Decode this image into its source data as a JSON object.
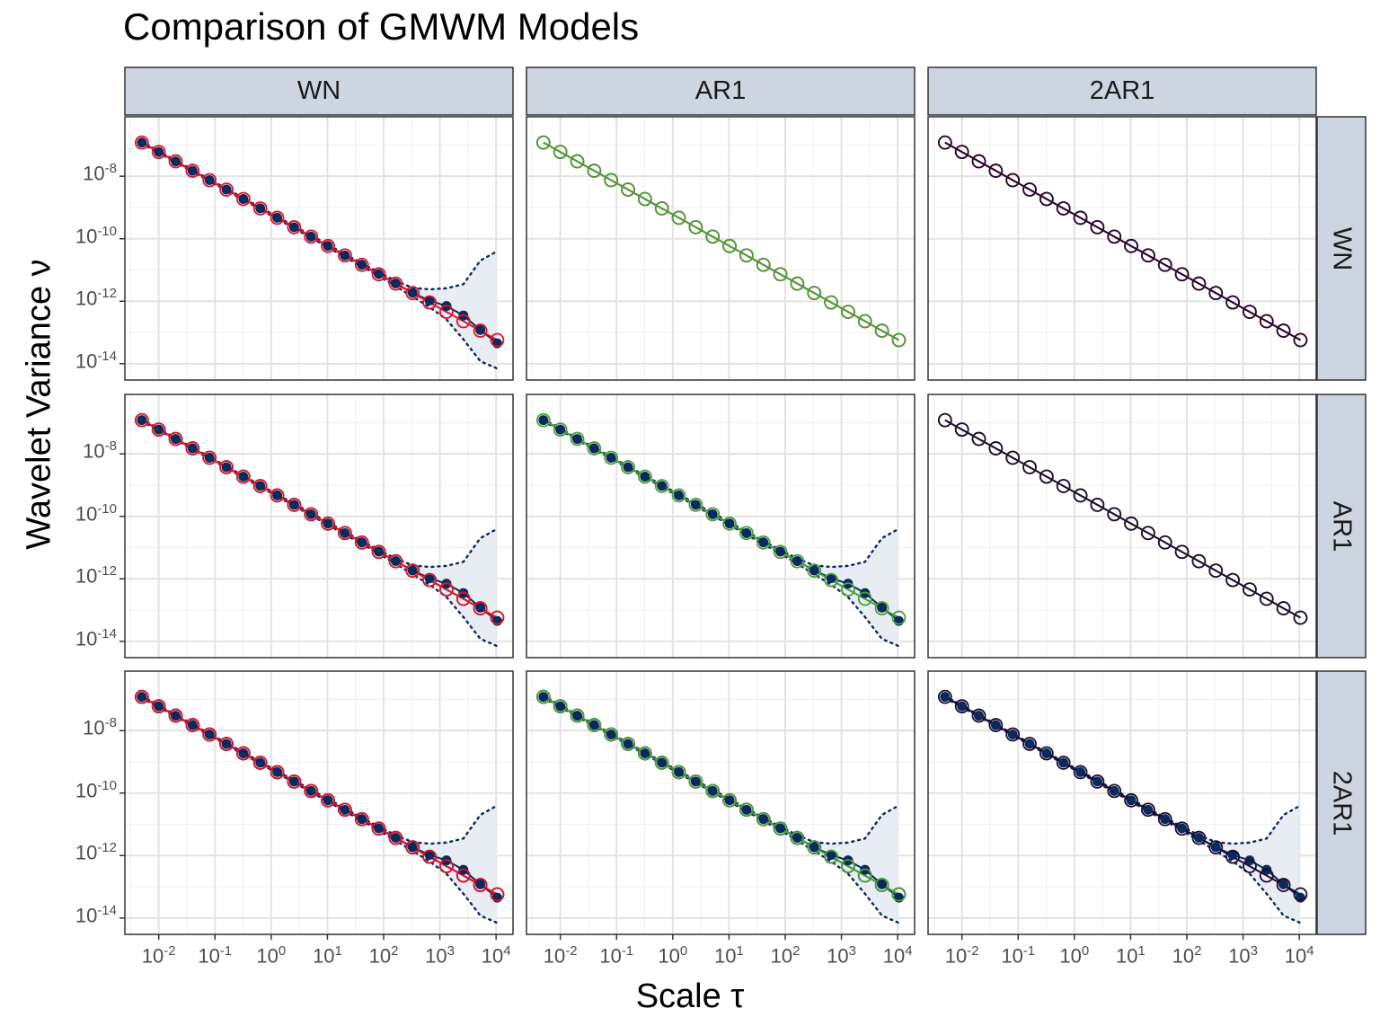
{
  "title": "Comparison of GMWM Models",
  "xlabel": "Scale τ",
  "ylabel": "Wavelet Variance ν",
  "col_strips": [
    "WN",
    "AR1",
    "2AR1"
  ],
  "row_strips": [
    "WN",
    "AR1",
    "2AR1"
  ],
  "y_tick_labels": [
    {
      "base": "10",
      "exp": "-8"
    },
    {
      "base": "10",
      "exp": "-10"
    },
    {
      "base": "10",
      "exp": "-12"
    },
    {
      "base": "10",
      "exp": "-14"
    }
  ],
  "x_tick_labels": [
    {
      "base": "10",
      "exp": "-2"
    },
    {
      "base": "10",
      "exp": "-1"
    },
    {
      "base": "10",
      "exp": "0"
    },
    {
      "base": "10",
      "exp": "1"
    },
    {
      "base": "10",
      "exp": "2"
    },
    {
      "base": "10",
      "exp": "3"
    },
    {
      "base": "10",
      "exp": "4"
    }
  ],
  "colors": {
    "empirical": "#0b2a5c",
    "ci_fill": "#e6eaf2",
    "WN": "#e3102a",
    "AR1": "#4a9e3a",
    "2AR1": "#1f0a33",
    "strip_bg": "#cdd5e0"
  },
  "chart_data": {
    "type": "scatter",
    "facet_rows": [
      "WN",
      "AR1",
      "2AR1"
    ],
    "facet_cols": [
      "WN",
      "AR1",
      "2AR1"
    ],
    "x_scale": "log10",
    "y_scale": "log10",
    "xlim": [
      0.0025,
      20000
    ],
    "ylim": [
      3e-15,
      8e-07
    ],
    "grid": true,
    "empirical": {
      "x": [
        0.005,
        0.01,
        0.02,
        0.04,
        0.08,
        0.16,
        0.32,
        0.64,
        1.28,
        2.56,
        5.12,
        10.24,
        20.48,
        40.96,
        81.92,
        163.84,
        327.68,
        655.36,
        1310.72,
        2621.44,
        5242.88,
        10485.76
      ],
      "y": [
        1.2e-07,
        6e-08,
        3e-08,
        1.5e-08,
        7.5e-09,
        3.75e-09,
        1.87e-09,
        9.4e-10,
        4.7e-10,
        2.35e-10,
        1.17e-10,
        5.9e-11,
        2.9e-11,
        1.47e-11,
        7.4e-12,
        3.7e-12,
        1.85e-12,
        1.05e-12,
        7e-13,
        3.5e-13,
        1.2e-13,
        4.5e-14
      ],
      "ci_lower": [
        1.1e-07,
        5.6e-08,
        2.8e-08,
        1.4e-08,
        7e-09,
        3.5e-09,
        1.75e-09,
        8.7e-10,
        4.35e-10,
        2.15e-10,
        1.07e-10,
        5.3e-11,
        2.6e-11,
        1.3e-11,
        6.4e-12,
        3e-12,
        1.4e-12,
        6.5e-13,
        2.6e-13,
        6e-14,
        1.2e-14,
        7e-15
      ],
      "ci_upper": [
        1.3e-07,
        6.4e-08,
        3.2e-08,
        1.6e-08,
        8e-09,
        4e-09,
        2e-09,
        1.01e-09,
        5.05e-10,
        2.55e-10,
        1.28e-10,
        6.5e-11,
        3.2e-11,
        1.65e-11,
        8.4e-12,
        4.5e-12,
        2.7e-12,
        2.4e-12,
        2.6e-12,
        3.5e-12,
        2e-11,
        4e-11
      ]
    },
    "show_empirical": [
      [
        true,
        false,
        false
      ],
      [
        true,
        true,
        false
      ],
      [
        true,
        true,
        true
      ]
    ],
    "series": [
      {
        "name": "WN",
        "y": [
          1.2e-07,
          6e-08,
          3e-08,
          1.5e-08,
          7.5e-09,
          3.75e-09,
          1.87e-09,
          9.35e-10,
          4.68e-10,
          2.34e-10,
          1.17e-10,
          5.85e-11,
          2.93e-11,
          1.46e-11,
          7.3e-12,
          3.66e-12,
          1.83e-12,
          9.15e-13,
          4.57e-13,
          2.29e-13,
          1.14e-13,
          5.7e-14
        ]
      },
      {
        "name": "AR1",
        "y": [
          1.2e-07,
          6e-08,
          3e-08,
          1.5e-08,
          7.5e-09,
          3.75e-09,
          1.87e-09,
          9.35e-10,
          4.68e-10,
          2.34e-10,
          1.17e-10,
          5.85e-11,
          2.93e-11,
          1.46e-11,
          7.3e-12,
          3.66e-12,
          1.83e-12,
          9.15e-13,
          4.57e-13,
          2.29e-13,
          1.14e-13,
          5.7e-14
        ]
      },
      {
        "name": "2AR1",
        "y": [
          1.2e-07,
          6e-08,
          3e-08,
          1.5e-08,
          7.5e-09,
          3.75e-09,
          1.87e-09,
          9.35e-10,
          4.68e-10,
          2.34e-10,
          1.17e-10,
          5.85e-11,
          2.93e-11,
          1.46e-11,
          7.3e-12,
          3.66e-12,
          1.83e-12,
          9.15e-13,
          4.57e-13,
          2.29e-13,
          1.14e-13,
          5.7e-14
        ]
      }
    ]
  }
}
